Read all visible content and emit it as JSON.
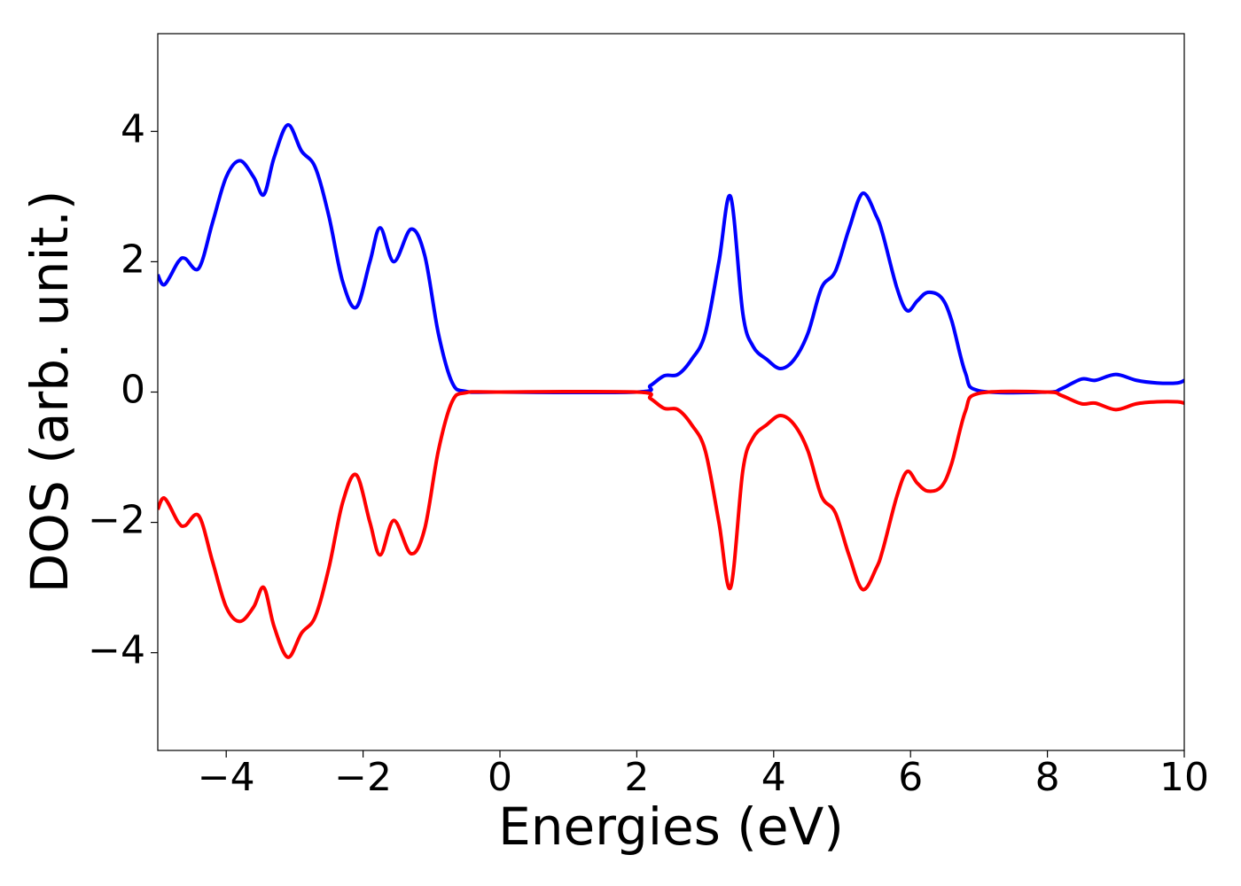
{
  "chart_data": {
    "type": "line",
    "xlabel": "Energies (eV)",
    "ylabel": "DOS (arb. unit.)",
    "x": [
      -5,
      -4.9,
      -4.7,
      -4.6,
      -4.4,
      -4.2,
      -4.0,
      -3.8,
      -3.6,
      -3.45,
      -3.3,
      -3.1,
      -2.9,
      -2.7,
      -2.5,
      -2.3,
      -2.1,
      -1.9,
      -1.75,
      -1.55,
      -1.3,
      -1.1,
      -0.9,
      -0.7,
      -0.5,
      0,
      2.0,
      2.2,
      2.4,
      2.6,
      2.8,
      3.0,
      3.2,
      3.37,
      3.55,
      3.7,
      3.9,
      4.1,
      4.3,
      4.5,
      4.7,
      4.9,
      5.1,
      5.3,
      5.5,
      5.6,
      5.8,
      5.95,
      6.1,
      6.25,
      6.45,
      6.6,
      6.8,
      7.0,
      8.0,
      8.2,
      8.5,
      8.7,
      9.0,
      9.3,
      9.6,
      9.9,
      10
    ],
    "series": [
      {
        "color": "#0000ff",
        "values": [
          1.8,
          1.65,
          2.0,
          2.05,
          1.9,
          2.6,
          3.3,
          3.55,
          3.3,
          3.03,
          3.6,
          4.1,
          3.7,
          3.45,
          2.7,
          1.7,
          1.3,
          2.0,
          2.52,
          2.0,
          2.5,
          2.1,
          0.9,
          0.15,
          0.01,
          0,
          0,
          0.1,
          0.25,
          0.27,
          0.5,
          0.9,
          2.0,
          3.0,
          1.2,
          0.7,
          0.5,
          0.36,
          0.5,
          0.9,
          1.6,
          1.85,
          2.5,
          3.05,
          2.7,
          2.4,
          1.6,
          1.25,
          1.4,
          1.53,
          1.45,
          1.1,
          0.3,
          0.02,
          0,
          0.05,
          0.2,
          0.18,
          0.27,
          0.18,
          0.14,
          0.14,
          0.18
        ]
      },
      {
        "color": "#ff0000",
        "values": [
          -1.8,
          -1.63,
          -2.0,
          -2.05,
          -1.9,
          -2.6,
          -3.3,
          -3.52,
          -3.3,
          -3.0,
          -3.6,
          -4.07,
          -3.7,
          -3.45,
          -2.7,
          -1.7,
          -1.27,
          -2.0,
          -2.5,
          -1.97,
          -2.48,
          -2.1,
          -0.9,
          -0.15,
          -0.01,
          0,
          0,
          -0.1,
          -0.25,
          -0.27,
          -0.5,
          -0.9,
          -2.0,
          -3.0,
          -1.2,
          -0.7,
          -0.5,
          -0.36,
          -0.5,
          -0.9,
          -1.6,
          -1.85,
          -2.5,
          -3.03,
          -2.7,
          -2.4,
          -1.6,
          -1.22,
          -1.4,
          -1.52,
          -1.45,
          -1.1,
          -0.3,
          -0.02,
          0,
          -0.05,
          -0.18,
          -0.17,
          -0.27,
          -0.18,
          -0.15,
          -0.15,
          -0.17
        ]
      }
    ],
    "xlim": [
      -5,
      10
    ],
    "xticks": [
      {
        "value": -4,
        "label": "−4"
      },
      {
        "value": -2,
        "label": "−2"
      },
      0,
      2,
      4,
      6,
      8,
      10
    ],
    "ylim": [
      -5.5,
      5.5
    ],
    "yticks": [
      {
        "value": -4,
        "label": "−4"
      },
      {
        "value": -2,
        "label": "−2"
      },
      0,
      2,
      4
    ],
    "grid": false
  }
}
